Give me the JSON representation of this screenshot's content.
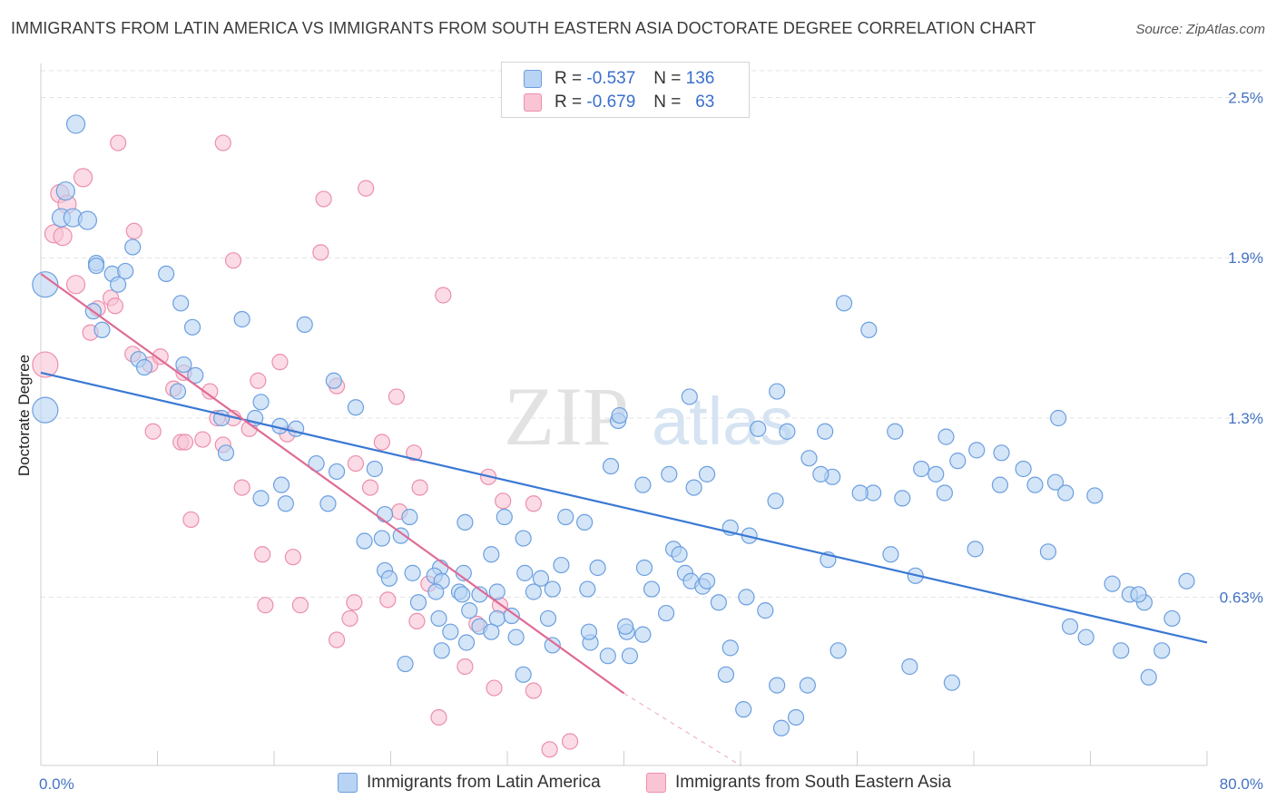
{
  "title": "IMMIGRANTS FROM LATIN AMERICA VS IMMIGRANTS FROM SOUTH EASTERN ASIA DOCTORATE DEGREE CORRELATION CHART",
  "source": "Source: ZipAtlas.com",
  "watermark": {
    "zip": "ZIP",
    "atlas": "atlas"
  },
  "legend": {
    "rows": [
      {
        "r_label": "R =",
        "r_value": "-0.537",
        "n_label": "N =",
        "n_value": "136"
      },
      {
        "r_label": "R =",
        "r_value": "-0.679",
        "n_label": "N =",
        "n_value": "63"
      }
    ]
  },
  "colors": {
    "blue_fill": "#b8d3f3",
    "blue_stroke": "#6b9fe0",
    "blue_line": "#3a78d4",
    "pink_fill": "#f9c5d5",
    "pink_stroke": "#ec8fab",
    "pink_line": "#e06b95",
    "grid": "#e3e3e3",
    "axis_text": "#4472c4"
  },
  "chart_data": {
    "type": "scatter",
    "title": "IMMIGRANTS FROM LATIN AMERICA VS IMMIGRANTS FROM SOUTH EASTERN ASIA DOCTORATE DEGREE CORRELATION CHART",
    "xlabel": "",
    "ylabel": "Doctorate Degree",
    "xlim": [
      0,
      80
    ],
    "ylim": [
      0,
      2.6
    ],
    "x_tick_labels": [
      "0.0%",
      "80.0%"
    ],
    "y_ticks": [
      0.63,
      1.3,
      1.9,
      2.5
    ],
    "y_tick_labels": [
      "0.63%",
      "1.3%",
      "1.9%",
      "2.5%"
    ],
    "series": [
      {
        "name": "Immigrants from Latin America",
        "color": "#6b9fe0",
        "trend": {
          "x0": 0,
          "y0": 1.47,
          "x1": 80,
          "y1": 0.46
        },
        "points": [
          [
            2.4,
            2.4
          ],
          [
            1.7,
            2.15
          ],
          [
            1.4,
            2.05
          ],
          [
            2.2,
            2.05
          ],
          [
            3.2,
            2.04
          ],
          [
            6.3,
            1.94
          ],
          [
            3.8,
            1.88
          ],
          [
            4.9,
            1.84
          ],
          [
            3.6,
            1.7
          ],
          [
            0.3,
            1.8
          ],
          [
            3.8,
            1.87
          ],
          [
            5.3,
            1.8
          ],
          [
            8.6,
            1.84
          ],
          [
            9.6,
            1.73
          ],
          [
            4.2,
            1.63
          ],
          [
            5.8,
            1.85
          ],
          [
            13.8,
            1.67
          ],
          [
            18.1,
            1.65
          ],
          [
            10.4,
            1.64
          ],
          [
            0.3,
            1.33
          ],
          [
            6.7,
            1.52
          ],
          [
            9.8,
            1.5
          ],
          [
            7.1,
            1.49
          ],
          [
            10.6,
            1.46
          ],
          [
            20.1,
            1.44
          ],
          [
            15.1,
            1.36
          ],
          [
            9.4,
            1.4
          ],
          [
            21.6,
            1.34
          ],
          [
            12.4,
            1.3
          ],
          [
            14.7,
            1.3
          ],
          [
            16.4,
            1.27
          ],
          [
            17.5,
            1.26
          ],
          [
            12.7,
            1.17
          ],
          [
            18.9,
            1.13
          ],
          [
            20.3,
            1.1
          ],
          [
            16.5,
            1.05
          ],
          [
            15.1,
            1.0
          ],
          [
            16.8,
            0.98
          ],
          [
            19.7,
            0.98
          ],
          [
            22.9,
            1.11
          ],
          [
            23.6,
            0.94
          ],
          [
            25.3,
            0.93
          ],
          [
            24.7,
            0.86
          ],
          [
            23.4,
            0.85
          ],
          [
            22.2,
            0.84
          ],
          [
            29.1,
            0.91
          ],
          [
            31.8,
            0.93
          ],
          [
            33.1,
            0.85
          ],
          [
            36.0,
            0.93
          ],
          [
            37.3,
            0.91
          ],
          [
            30.9,
            0.79
          ],
          [
            27.4,
            0.74
          ],
          [
            29.0,
            0.72
          ],
          [
            34.3,
            0.7
          ],
          [
            33.2,
            0.72
          ],
          [
            35.7,
            0.75
          ],
          [
            38.2,
            0.74
          ],
          [
            23.6,
            0.73
          ],
          [
            23.9,
            0.7
          ],
          [
            25.5,
            0.72
          ],
          [
            27.0,
            0.71
          ],
          [
            27.5,
            0.69
          ],
          [
            27.1,
            0.65
          ],
          [
            28.7,
            0.65
          ],
          [
            31.3,
            0.65
          ],
          [
            33.8,
            0.65
          ],
          [
            35.1,
            0.66
          ],
          [
            37.5,
            0.66
          ],
          [
            28.9,
            0.64
          ],
          [
            30.1,
            0.64
          ],
          [
            29.4,
            0.58
          ],
          [
            31.3,
            0.55
          ],
          [
            27.3,
            0.55
          ],
          [
            32.3,
            0.56
          ],
          [
            34.8,
            0.55
          ],
          [
            30.1,
            0.52
          ],
          [
            30.9,
            0.5
          ],
          [
            28.1,
            0.5
          ],
          [
            29.2,
            0.46
          ],
          [
            32.6,
            0.48
          ],
          [
            35.1,
            0.45
          ],
          [
            27.5,
            0.43
          ],
          [
            33.1,
            0.34
          ],
          [
            25.0,
            0.38
          ],
          [
            25.9,
            0.61
          ],
          [
            38.9,
            0.41
          ],
          [
            37.7,
            0.46
          ],
          [
            37.6,
            0.5
          ],
          [
            40.2,
            0.5
          ],
          [
            40.4,
            0.41
          ],
          [
            42.9,
            0.57
          ],
          [
            41.9,
            0.66
          ],
          [
            44.2,
            0.72
          ],
          [
            44.6,
            0.69
          ],
          [
            45.4,
            0.67
          ],
          [
            43.4,
            0.81
          ],
          [
            43.8,
            0.79
          ],
          [
            46.5,
            0.61
          ],
          [
            45.7,
            0.69
          ],
          [
            48.4,
            0.63
          ],
          [
            41.4,
            0.74
          ],
          [
            49.7,
            0.58
          ],
          [
            47.3,
            0.44
          ],
          [
            47.0,
            0.34
          ],
          [
            48.2,
            0.21
          ],
          [
            50.5,
            0.3
          ],
          [
            51.8,
            0.18
          ],
          [
            50.8,
            0.14
          ],
          [
            52.6,
            0.3
          ],
          [
            40.1,
            0.52
          ],
          [
            41.3,
            0.49
          ],
          [
            39.6,
            1.29
          ],
          [
            44.5,
            1.38
          ],
          [
            39.1,
            1.12
          ],
          [
            43.1,
            1.09
          ],
          [
            41.3,
            1.05
          ],
          [
            45.7,
            1.09
          ],
          [
            47.3,
            0.89
          ],
          [
            48.6,
            0.86
          ],
          [
            50.4,
            0.99
          ],
          [
            51.2,
            1.25
          ],
          [
            52.7,
            1.15
          ],
          [
            53.8,
            1.25
          ],
          [
            54.3,
            1.08
          ],
          [
            57.1,
            1.02
          ],
          [
            59.1,
            1.0
          ],
          [
            60.4,
            1.11
          ],
          [
            61.4,
            1.09
          ],
          [
            62.9,
            1.14
          ],
          [
            64.2,
            1.18
          ],
          [
            65.9,
            1.17
          ],
          [
            67.4,
            1.11
          ],
          [
            68.2,
            1.05
          ],
          [
            69.1,
            0.8
          ],
          [
            69.6,
            1.06
          ],
          [
            73.5,
            0.68
          ],
          [
            74.7,
            0.64
          ],
          [
            75.7,
            0.61
          ],
          [
            71.7,
            0.48
          ],
          [
            78.6,
            0.69
          ],
          [
            75.3,
            0.64
          ],
          [
            70.6,
            0.52
          ],
          [
            74.1,
            0.43
          ],
          [
            76.0,
            0.33
          ],
          [
            62.5,
            0.31
          ],
          [
            59.6,
            0.37
          ],
          [
            54.7,
            0.43
          ],
          [
            49.2,
            1.26
          ],
          [
            39.7,
            1.31
          ],
          [
            44.8,
            1.04
          ],
          [
            50.5,
            1.4
          ],
          [
            62.0,
            1.02
          ],
          [
            64.1,
            0.81
          ],
          [
            60.0,
            0.71
          ],
          [
            58.3,
            0.79
          ],
          [
            56.2,
            1.02
          ],
          [
            53.5,
            1.09
          ],
          [
            54.0,
            0.77
          ],
          [
            69.8,
            1.3
          ],
          [
            77.6,
            0.55
          ],
          [
            76.9,
            0.43
          ],
          [
            55.1,
            1.73
          ],
          [
            56.8,
            1.63
          ],
          [
            58.6,
            1.25
          ],
          [
            62.1,
            1.23
          ],
          [
            65.8,
            1.05
          ],
          [
            70.3,
            1.02
          ],
          [
            72.3,
            1.01
          ]
        ]
      },
      {
        "name": "Immigrants from South Eastern Asia",
        "color": "#ec8fab",
        "trend": {
          "x0": 0,
          "y0": 1.84,
          "x1": 40,
          "y1": 0.27,
          "dashed_to_x": 48,
          "dashed_to_y": 0.0
        },
        "points": [
          [
            1.3,
            2.14
          ],
          [
            0.9,
            1.99
          ],
          [
            1.8,
            2.1
          ],
          [
            2.9,
            2.2
          ],
          [
            5.3,
            2.33
          ],
          [
            6.4,
            2.0
          ],
          [
            12.5,
            2.33
          ],
          [
            19.4,
            2.12
          ],
          [
            19.2,
            1.92
          ],
          [
            22.3,
            2.16
          ],
          [
            13.2,
            1.89
          ],
          [
            2.4,
            1.8
          ],
          [
            4.8,
            1.75
          ],
          [
            5.1,
            1.72
          ],
          [
            3.9,
            1.71
          ],
          [
            3.4,
            1.62
          ],
          [
            6.3,
            1.54
          ],
          [
            7.5,
            1.5
          ],
          [
            8.2,
            1.53
          ],
          [
            9.1,
            1.41
          ],
          [
            9.8,
            1.47
          ],
          [
            11.6,
            1.4
          ],
          [
            14.9,
            1.44
          ],
          [
            16.4,
            1.51
          ],
          [
            20.3,
            1.42
          ],
          [
            24.4,
            1.38
          ],
          [
            27.6,
            1.76
          ],
          [
            12.1,
            1.3
          ],
          [
            13.2,
            1.3
          ],
          [
            7.7,
            1.25
          ],
          [
            9.6,
            1.21
          ],
          [
            9.9,
            1.21
          ],
          [
            11.1,
            1.22
          ],
          [
            12.5,
            1.2
          ],
          [
            14.3,
            1.26
          ],
          [
            16.9,
            1.24
          ],
          [
            23.4,
            1.21
          ],
          [
            25.6,
            1.17
          ],
          [
            21.6,
            1.13
          ],
          [
            13.8,
            1.04
          ],
          [
            22.6,
            1.04
          ],
          [
            26.0,
            1.04
          ],
          [
            30.7,
            1.08
          ],
          [
            24.6,
            0.95
          ],
          [
            31.7,
            0.99
          ],
          [
            33.8,
            0.98
          ],
          [
            10.3,
            0.92
          ],
          [
            15.2,
            0.79
          ],
          [
            17.3,
            0.78
          ],
          [
            26.6,
            0.68
          ],
          [
            31.5,
            0.6
          ],
          [
            15.4,
            0.6
          ],
          [
            17.8,
            0.6
          ],
          [
            21.5,
            0.61
          ],
          [
            23.8,
            0.62
          ],
          [
            21.2,
            0.55
          ],
          [
            25.8,
            0.54
          ],
          [
            29.9,
            0.53
          ],
          [
            20.3,
            0.47
          ],
          [
            29.1,
            0.37
          ],
          [
            31.1,
            0.29
          ],
          [
            33.8,
            0.28
          ],
          [
            27.3,
            0.18
          ],
          [
            34.9,
            0.06
          ],
          [
            36.3,
            0.09
          ],
          [
            0.3,
            1.5
          ],
          [
            1.5,
            1.98
          ]
        ]
      }
    ]
  },
  "bottom_legend": [
    {
      "label": "Immigrants from Latin America"
    },
    {
      "label": "Immigrants from South Eastern Asia"
    }
  ]
}
